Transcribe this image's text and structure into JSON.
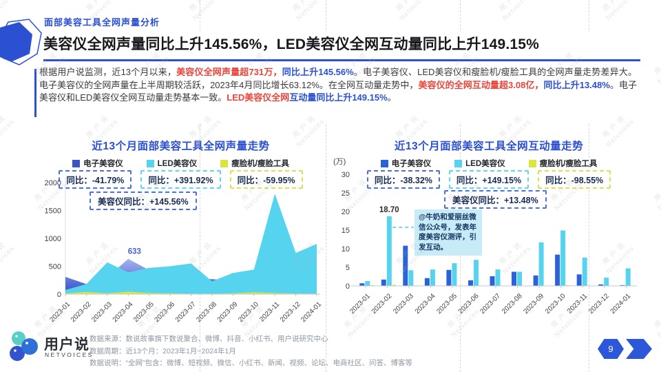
{
  "header": {
    "eyebrow": "面部美容工具全网声量分析",
    "title": "美容仪全网声量同比上升145.56%，LED美容仪全网互动量同比上升149.15%"
  },
  "paragraph": {
    "segments": [
      {
        "t": "根据用户说监测，近13个月以来，",
        "s": "n"
      },
      {
        "t": "美容仪全网声量超731万，",
        "s": "r"
      },
      {
        "t": "同比上升145.56%",
        "s": "b"
      },
      {
        "t": "。电子美容仪、LED美容仪和瘦脸机/瘦脸工具的全网声量走势差异大。电子美容仪的全网声量在上半周期较活跃，2023年4月同比增长63.12%。在全网互动量走势中，",
        "s": "n"
      },
      {
        "t": "美容仪的全网互动量超3.08亿，",
        "s": "r"
      },
      {
        "t": "同比上升13.48%",
        "s": "b"
      },
      {
        "t": "。电子美容仪和LED美容仪全网互动量走势基本一致。",
        "s": "n"
      },
      {
        "t": "LED美容仪全网",
        "s": "r"
      },
      {
        "t": "互动量同比上升149.15%",
        "s": "b"
      },
      {
        "t": "。",
        "s": "n"
      }
    ]
  },
  "chart_data": [
    {
      "type": "area",
      "title": "近13个月面部美容工具全网声量走势",
      "categories": [
        "2023-01",
        "2023-02",
        "2023-03",
        "2023-04",
        "2023-05",
        "2023-06",
        "2023-07",
        "2023-08",
        "2023-09",
        "2023-10",
        "2023-11",
        "2023-12",
        "2024-01"
      ],
      "ylim": [
        0,
        2000
      ],
      "yticks": [
        0,
        500,
        1000,
        1500,
        2000
      ],
      "grid": false,
      "legend_position": "top",
      "combined_yoy": "美容仪同比：+145.56%",
      "series": [
        {
          "name": "电子美容仪",
          "color": "#3b55c8",
          "badge_color": "#4a6ee0",
          "yoy": "同比：-41.79%",
          "values": [
            310,
            180,
            300,
            633,
            430,
            290,
            255,
            270,
            235,
            250,
            290,
            340,
            275
          ]
        },
        {
          "name": "LED美容仪",
          "color": "#55d3ef",
          "badge_color": "#5fd6f0",
          "yoy": "同比：+391.92%",
          "values": [
            75,
            180,
            570,
            390,
            470,
            500,
            550,
            230,
            380,
            440,
            1800,
            740,
            900
          ]
        },
        {
          "name": "瘦脸机/瘦脸工具",
          "color": "#dbe63c",
          "badge_color": "#dce24e",
          "yoy": "同比：-59.95%",
          "values": [
            15,
            40,
            15,
            45,
            20,
            15,
            10,
            10,
            15,
            35,
            20,
            12,
            8
          ]
        }
      ],
      "labels": [
        {
          "series": 0,
          "index": 3,
          "text": "633",
          "color": "#4a63d8"
        }
      ]
    },
    {
      "type": "bar",
      "title": "近13个月面部美容工具全网互动量走势",
      "unit": "(万)",
      "categories": [
        "2023-01",
        "2023-02",
        "2023-03",
        "2023-04",
        "2023-05",
        "2023-06",
        "2023-07",
        "2023-08",
        "2023-09",
        "2023-10",
        "2023-11",
        "2023-12",
        "2024-01"
      ],
      "ylim": [
        0,
        30
      ],
      "yticks": [
        0,
        5,
        10,
        15,
        20,
        25,
        30
      ],
      "grid": false,
      "legend_position": "top",
      "combined_yoy": "美容仪同比：+13.48%",
      "series": [
        {
          "name": "电子美容仪",
          "color": "#2b62d9",
          "badge_color": "#4a6ee0",
          "yoy": "同比：-38.32%",
          "values": [
            0.7,
            1.7,
            10.8,
            2.1,
            4.3,
            1.5,
            2.6,
            3.8,
            2.8,
            8.4,
            3.1,
            0.4,
            0.2
          ]
        },
        {
          "name": "LED美容仪",
          "color": "#55d3ef",
          "badge_color": "#5fd6f0",
          "yoy": "同比：+149.15%",
          "values": [
            1.3,
            18.7,
            4.2,
            4.4,
            6.1,
            7.0,
            4.4,
            3.8,
            11.7,
            14.9,
            7.6,
            2.2,
            4.7
          ]
        },
        {
          "name": "瘦脸机/瘦脸工具",
          "color": "#dbe63c",
          "badge_color": "#dce24e",
          "yoy": "同比：-98.55%",
          "values": [
            0.2,
            0.3,
            0.15,
            0.1,
            0.1,
            0.05,
            0.05,
            0.05,
            0.1,
            0.2,
            0.1,
            0.05,
            0.05
          ]
        }
      ],
      "labels": [
        {
          "series": 1,
          "index": 1,
          "text": "18.70",
          "color": "#2b2b2b"
        }
      ],
      "annotation": "@牛奶和爱丽丝微信公众号，发表年度美容仪测评，引发互动。"
    }
  ],
  "footer": {
    "logo_name": "用户说",
    "logo_sub": "NETVOICES",
    "lines": [
      "数据来源：数说故事旗下数说聚合、微博、抖音、小红书、用户说研究中心",
      "数据周期：近13个月：2023年1月~2024年1月",
      "数据说明：“全网”包含：微博、短视频、微信、小红书、新闻、视频、论坛、电商社区、问答、博客等"
    ]
  },
  "nav": {
    "page": "9"
  },
  "watermark": {
    "line1": "用 户 说",
    "line2": "Netvoices"
  }
}
